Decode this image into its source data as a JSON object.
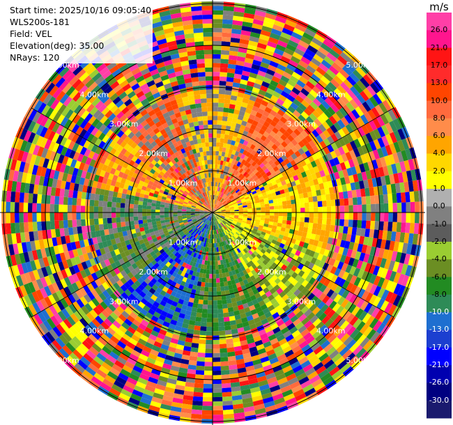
{
  "info": {
    "start_time": "Start time: 2025/10/16 09:05:40",
    "station": "WLS200s-181",
    "field": "Field: VEL",
    "elevation": "Elevation(deg): 35.00",
    "nrays": "NRays: 120"
  },
  "colorbar": {
    "unit": "m/s",
    "ticks": [
      "26.0",
      "21.0",
      "17.0",
      "13.0",
      "10.0",
      "8.0",
      "6.0",
      "4.0",
      "2.0",
      "1.0",
      "0.0",
      "-1.0",
      "-2.0",
      "-4.0",
      "-6.0",
      "-8.0",
      "-10.0",
      "-13.0",
      "-17.0",
      "-21.0",
      "-26.0",
      "-30.0"
    ],
    "colors": [
      "#ff3fa7",
      "#ff158e",
      "#ff1414",
      "#ff2b2b",
      "#ff4500",
      "#ff6a3d",
      "#ff8c4a",
      "#ffa500",
      "#ffd700",
      "#ffff00",
      "#b0b0b0",
      "#808080",
      "#5c5c5c",
      "#9acd32",
      "#6b8e23",
      "#228b22",
      "#2e8b57",
      "#1e6fd0",
      "#1c3fd0",
      "#0000ff",
      "#0000b0",
      "#000080",
      "#1a1a6e"
    ]
  },
  "rings": {
    "labels": [
      "1.00km",
      "2.00km",
      "3.00km",
      "4.00km",
      "5.00km"
    ]
  }
}
